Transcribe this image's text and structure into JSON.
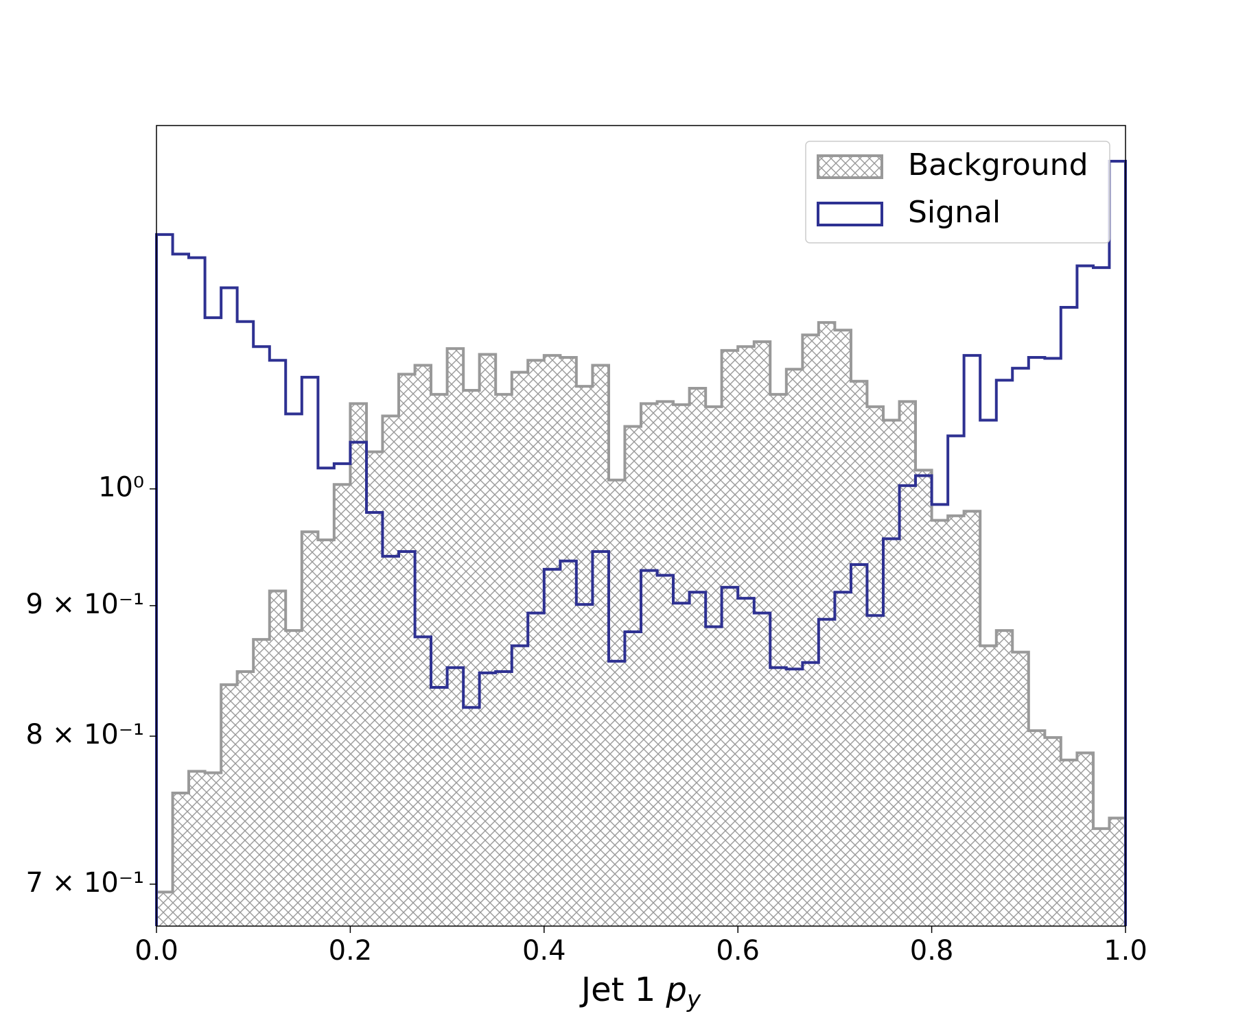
{
  "chart_data": {
    "type": "histogram",
    "xlabel": "Jet 1 py",
    "bins": [
      0,
      0.0167,
      0.0333,
      0.05,
      0.0667,
      0.0833,
      0.1,
      0.1167,
      0.1333,
      0.15,
      0.1667,
      0.1833,
      0.2,
      0.2167,
      0.2333,
      0.25,
      0.2667,
      0.2833,
      0.3,
      0.3167,
      0.3333,
      0.35,
      0.3667,
      0.3833,
      0.4,
      0.4167,
      0.4333,
      0.45,
      0.4667,
      0.4833,
      0.5,
      0.5167,
      0.5333,
      0.55,
      0.5667,
      0.5833,
      0.6,
      0.6167,
      0.6333,
      0.65,
      0.6667,
      0.6833,
      0.7,
      0.7167,
      0.7333,
      0.75,
      0.7667,
      0.7833,
      0.8,
      0.8167,
      0.8333,
      0.85,
      0.8667,
      0.8833,
      0.9,
      0.9167,
      0.9333,
      0.95,
      0.9667,
      0.9833,
      1
    ],
    "series": [
      {
        "name": "Background",
        "color": "#999999",
        "hatch": true,
        "values": [
          0.695,
          0.76,
          0.775,
          0.774,
          0.838,
          0.848,
          0.873,
          0.912,
          0.88,
          0.962,
          0.955,
          1.004,
          1.08,
          1.034,
          1.068,
          1.109,
          1.118,
          1.089,
          1.135,
          1.093,
          1.129,
          1.089,
          1.111,
          1.123,
          1.128,
          1.126,
          1.097,
          1.118,
          1.008,
          1.058,
          1.08,
          1.082,
          1.079,
          1.095,
          1.077,
          1.133,
          1.137,
          1.142,
          1.089,
          1.114,
          1.149,
          1.162,
          1.154,
          1.102,
          1.077,
          1.064,
          1.082,
          1.017,
          0.972,
          0.976,
          0.98,
          0.868,
          0.88,
          0.863,
          0.804,
          0.799,
          0.783,
          0.788,
          0.736,
          0.743
        ]
      },
      {
        "name": "Signal",
        "color": "#2e3192",
        "hatch": false,
        "values": [
          1.258,
          1.236,
          1.232,
          1.167,
          1.199,
          1.163,
          1.137,
          1.123,
          1.07,
          1.106,
          1.019,
          1.023,
          1.043,
          0.979,
          0.941,
          0.945,
          0.875,
          0.836,
          0.851,
          0.821,
          0.847,
          0.848,
          0.868,
          0.894,
          0.93,
          0.937,
          0.901,
          0.945,
          0.856,
          0.879,
          0.929,
          0.925,
          0.902,
          0.911,
          0.883,
          0.915,
          0.906,
          0.894,
          0.851,
          0.85,
          0.855,
          0.889,
          0.911,
          0.934,
          0.892,
          0.956,
          1.003,
          1.012,
          0.986,
          1.049,
          1.128,
          1.064,
          1.103,
          1.115,
          1.126,
          1.125,
          1.178,
          1.223,
          1.221,
          1.344
        ]
      }
    ],
    "xlim": [
      0,
      1
    ],
    "xticks": [
      {
        "value": 0,
        "label": "0.0"
      },
      0.2,
      0.4,
      0.6,
      0.8,
      {
        "value": 1,
        "label": "1.0"
      }
    ],
    "ylim": [
      0.674,
      1.388
    ],
    "yscale": "log",
    "yticks": [
      {
        "value": 0.7,
        "label": "7 × 10⁻¹"
      },
      {
        "value": 0.8,
        "label": "8 × 10⁻¹"
      },
      {
        "value": 0.9,
        "label": "9 × 10⁻¹"
      },
      {
        "value": 1,
        "label": "10⁰"
      }
    ],
    "legend": "upper right"
  }
}
